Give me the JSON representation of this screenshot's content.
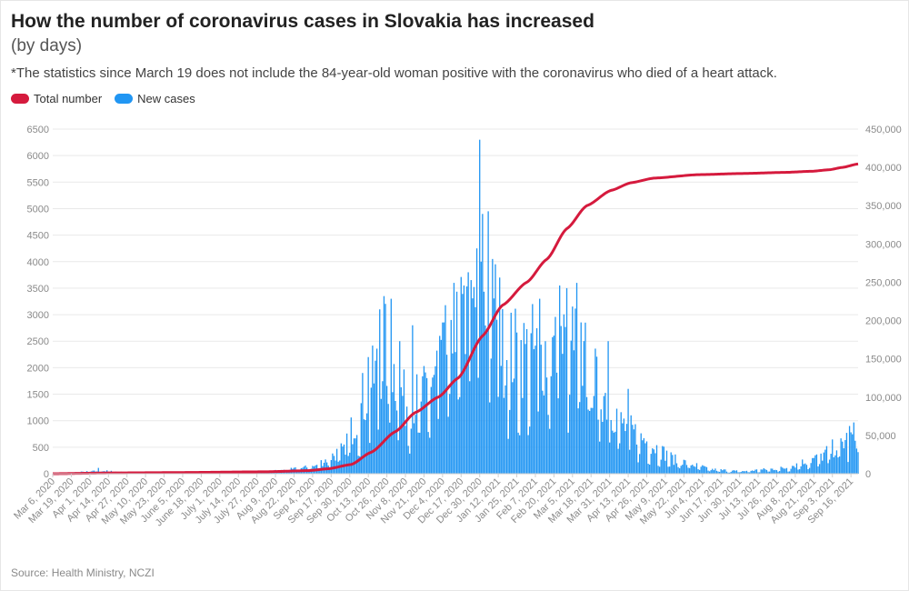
{
  "title": "How the number of coronavirus cases in Slovakia has increased",
  "subtitle": "(by days)",
  "note": "*The statistics since March 19 does not include the 84-year-old woman positive with the coronavirus who died of a heart attack.",
  "source": "Source: Health Ministry, NCZI",
  "colors": {
    "total": "#d51a3d",
    "new": "#2196f3",
    "grid": "#e9e9e9"
  },
  "chart_data": {
    "type": "bar",
    "series": [
      {
        "name": "Total number",
        "type": "line",
        "axis": "right",
        "points": [
          [
            "2020-03-06",
            0
          ],
          [
            "2020-04-15",
            1000
          ],
          [
            "2020-06-01",
            1500
          ],
          [
            "2020-08-01",
            2500
          ],
          [
            "2020-09-01",
            4000
          ],
          [
            "2020-09-15",
            6500
          ],
          [
            "2020-10-01",
            12000
          ],
          [
            "2020-10-15",
            28000
          ],
          [
            "2020-11-01",
            55000
          ],
          [
            "2020-11-15",
            80000
          ],
          [
            "2020-12-01",
            100000
          ],
          [
            "2020-12-15",
            125000
          ],
          [
            "2021-01-01",
            180000
          ],
          [
            "2021-01-15",
            220000
          ],
          [
            "2021-02-01",
            250000
          ],
          [
            "2021-02-15",
            280000
          ],
          [
            "2021-03-01",
            320000
          ],
          [
            "2021-03-15",
            350000
          ],
          [
            "2021-04-01",
            370000
          ],
          [
            "2021-04-15",
            380000
          ],
          [
            "2021-05-01",
            386000
          ],
          [
            "2021-06-01",
            390500
          ],
          [
            "2021-07-01",
            392000
          ],
          [
            "2021-08-01",
            393500
          ],
          [
            "2021-08-20",
            395000
          ],
          [
            "2021-09-01",
            397000
          ],
          [
            "2021-09-10",
            400000
          ],
          [
            "2021-09-21",
            404500
          ]
        ]
      },
      {
        "name": "New cases",
        "type": "bar",
        "axis": "left",
        "profile": [
          [
            "2020-03-06",
            0
          ],
          [
            "2020-04-10",
            60
          ],
          [
            "2020-05-01",
            15
          ],
          [
            "2020-07-15",
            20
          ],
          [
            "2020-08-15",
            70
          ],
          [
            "2020-09-05",
            150
          ],
          [
            "2020-09-25",
            500
          ],
          [
            "2020-10-10",
            1500
          ],
          [
            "2020-10-25",
            2600
          ],
          [
            "2020-11-08",
            1500
          ],
          [
            "2020-11-20",
            1600
          ],
          [
            "2020-12-10",
            2800
          ],
          [
            "2020-12-30",
            3500
          ],
          [
            "2021-01-15",
            2600
          ],
          [
            "2021-02-10",
            2500
          ],
          [
            "2021-03-05",
            2800
          ],
          [
            "2021-03-20",
            2000
          ],
          [
            "2021-04-10",
            1000
          ],
          [
            "2021-04-25",
            700
          ],
          [
            "2021-05-15",
            300
          ],
          [
            "2021-06-10",
            90
          ],
          [
            "2021-07-01",
            50
          ],
          [
            "2021-08-01",
            120
          ],
          [
            "2021-08-25",
            350
          ],
          [
            "2021-09-10",
            650
          ],
          [
            "2021-09-21",
            850
          ]
        ],
        "peaks": [
          [
            "2020-04-07",
            110
          ],
          [
            "2020-09-26",
            550
          ],
          [
            "2020-10-09",
            1900
          ],
          [
            "2020-10-13",
            2200
          ],
          [
            "2020-10-21",
            3100
          ],
          [
            "2020-10-24",
            3350
          ],
          [
            "2020-10-29",
            3300
          ],
          [
            "2020-11-04",
            2500
          ],
          [
            "2020-11-13",
            2800
          ],
          [
            "2020-12-02",
            2600
          ],
          [
            "2020-12-10",
            2900
          ],
          [
            "2020-12-12",
            3600
          ],
          [
            "2020-12-19",
            3550
          ],
          [
            "2020-12-22",
            3800
          ],
          [
            "2020-12-28",
            4250
          ],
          [
            "2020-12-30",
            6300
          ],
          [
            "2021-01-01",
            4900
          ],
          [
            "2021-01-05",
            4950
          ],
          [
            "2021-01-08",
            4050
          ],
          [
            "2021-01-10",
            3950
          ],
          [
            "2021-01-13",
            3700
          ],
          [
            "2021-02-05",
            3200
          ],
          [
            "2021-02-10",
            3300
          ],
          [
            "2021-02-24",
            3550
          ],
          [
            "2021-03-01",
            3500
          ],
          [
            "2021-03-08",
            3600
          ],
          [
            "2021-03-14",
            2850
          ],
          [
            "2021-03-30",
            2500
          ],
          [
            "2021-04-13",
            1600
          ],
          [
            "2021-09-15",
            900
          ]
        ]
      }
    ],
    "x_tick_labels": [
      "Mar 6, 2020",
      "Mar 19, 2020",
      "Apr 1, 2020",
      "Apr 14, 2020",
      "Apr 27, 2020",
      "May 10, 2020",
      "May 23, 2020",
      "June 5, 2020",
      "June 18, 2020",
      "July 1, 2020",
      "July 14, 2020",
      "July 27, 2020",
      "Aug 9, 2020",
      "Aug 22, 2020",
      "Sep 4, 2020",
      "Sep 17, 2020",
      "Sep 30, 2020",
      "Oct 13, 2020",
      "Oct 26, 2020",
      "Nov 8, 2020",
      "Nov 21, 2020",
      "Dec 4, 2020",
      "Dec 17, 2020",
      "Dec 30, 2020",
      "Jan 12, 2021",
      "Jan 25, 2021",
      "Feb 7, 2021",
      "Feb 20, 2021",
      "Mar 5, 2021",
      "Mar 18, 2021",
      "Mar 31, 2021",
      "Apr 13, 2021",
      "Apr 26, 2021",
      "May 9, 2021",
      "May 22, 2021",
      "Jun 4, 2021",
      "Jun 17, 2021",
      "Jun 30, 2021",
      "Jul 13, 2021",
      "Jul 26, 2021",
      "Aug 8, 2021",
      "Aug 21, 2021",
      "Sep 3, 2021",
      "Sep 16, 2021"
    ],
    "x_tick_dates": [
      "2020-03-06",
      "2020-03-19",
      "2020-04-01",
      "2020-04-14",
      "2020-04-27",
      "2020-05-10",
      "2020-05-23",
      "2020-06-05",
      "2020-06-18",
      "2020-07-01",
      "2020-07-14",
      "2020-07-27",
      "2020-08-09",
      "2020-08-22",
      "2020-09-04",
      "2020-09-17",
      "2020-09-30",
      "2020-10-13",
      "2020-10-26",
      "2020-11-08",
      "2020-11-21",
      "2020-12-04",
      "2020-12-17",
      "2020-12-30",
      "2021-01-12",
      "2021-01-25",
      "2021-02-07",
      "2021-02-20",
      "2021-03-05",
      "2021-03-18",
      "2021-03-31",
      "2021-04-13",
      "2021-04-26",
      "2021-05-09",
      "2021-05-22",
      "2021-06-04",
      "2021-06-17",
      "2021-06-30",
      "2021-07-13",
      "2021-07-26",
      "2021-08-08",
      "2021-08-21",
      "2021-09-03",
      "2021-09-16"
    ],
    "x_range": [
      "2020-03-06",
      "2021-09-21"
    ],
    "y_left_ticks": [
      "0",
      "500",
      "1000",
      "1500",
      "2000",
      "2500",
      "3000",
      "3500",
      "4000",
      "4500",
      "5000",
      "5500",
      "6000",
      "6500"
    ],
    "y_left_range": [
      0,
      6500
    ],
    "y_right_ticks": [
      "0",
      "50,000",
      "100,000",
      "150,000",
      "200,000",
      "250,000",
      "300,000",
      "350,000",
      "400,000",
      "450,000"
    ],
    "y_right_range": [
      0,
      450000
    ],
    "legend": "top-left",
    "grid": true
  }
}
